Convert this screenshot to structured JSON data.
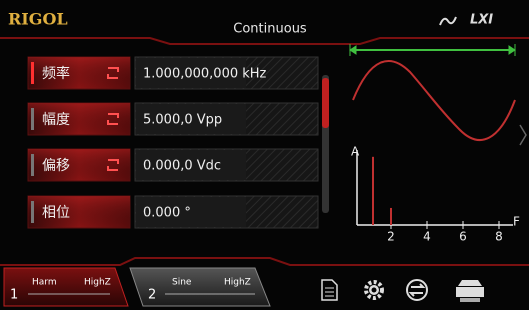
{
  "header": {
    "brand": "RIGOL",
    "mode": "Continuous",
    "lxi": "LXI"
  },
  "parameters": [
    {
      "label": "频率",
      "value": "1.000,000,000 kHz"
    },
    {
      "label": "幅度",
      "value": "5.000,0 Vpp"
    },
    {
      "label": "偏移",
      "value": "0.000,0 Vdc"
    },
    {
      "label": "相位",
      "value": "0.000 °"
    }
  ],
  "channels": [
    {
      "number": "1",
      "waveform": "Harm",
      "load": "HighZ"
    },
    {
      "number": "2",
      "waveform": "Sine",
      "load": "HighZ"
    }
  ],
  "spectrum": {
    "y_label": "A",
    "x_label": "F",
    "xlim": [
      0,
      9
    ],
    "ylim": [
      0,
      1.1
    ],
    "xticks": [
      2,
      4,
      6,
      8
    ],
    "harmonics": [
      {
        "x": 1,
        "amplitude": 1
      },
      {
        "x": 2,
        "amplitude": 0.25
      }
    ]
  }
}
